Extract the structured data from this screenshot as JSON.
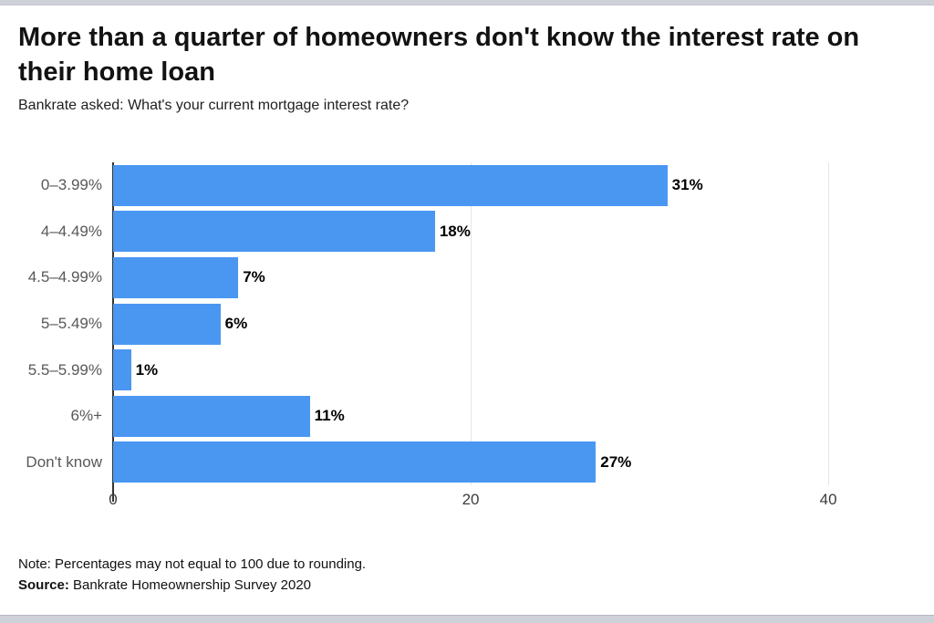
{
  "header": {
    "title": "More than a quarter of homeowners don't know the interest rate on their home loan",
    "subtitle": "Bankrate asked: What's your current mortgage interest rate?"
  },
  "chart_data": {
    "type": "bar",
    "orientation": "horizontal",
    "title": "More than a quarter of homeowners don't know the interest rate on their home loan",
    "subtitle": "Bankrate asked: What's your current mortgage interest rate?",
    "categories": [
      "0–3.99%",
      "4–4.49%",
      "4.5–4.99%",
      "5–5.49%",
      "5.5–5.99%",
      "6%+",
      "Don't know"
    ],
    "values": [
      31,
      18,
      7,
      6,
      1,
      11,
      27
    ],
    "value_labels": [
      "31%",
      "18%",
      "7%",
      "6%",
      "1%",
      "11%",
      "27%"
    ],
    "x_ticks": [
      0,
      20,
      40
    ],
    "x_tick_labels": [
      "0",
      "20",
      "40"
    ],
    "xlim": [
      0,
      42.75
    ],
    "grid": true,
    "legend": "none",
    "bar_color": "#4a97f2",
    "axis_color": "#333333",
    "grid_color": "#e6e6e6"
  },
  "footer": {
    "note": "Note: Percentages may not equal to 100 due to rounding.",
    "source_label": "Source:",
    "source_text": " Bankrate Homeownership Survey 2020"
  }
}
